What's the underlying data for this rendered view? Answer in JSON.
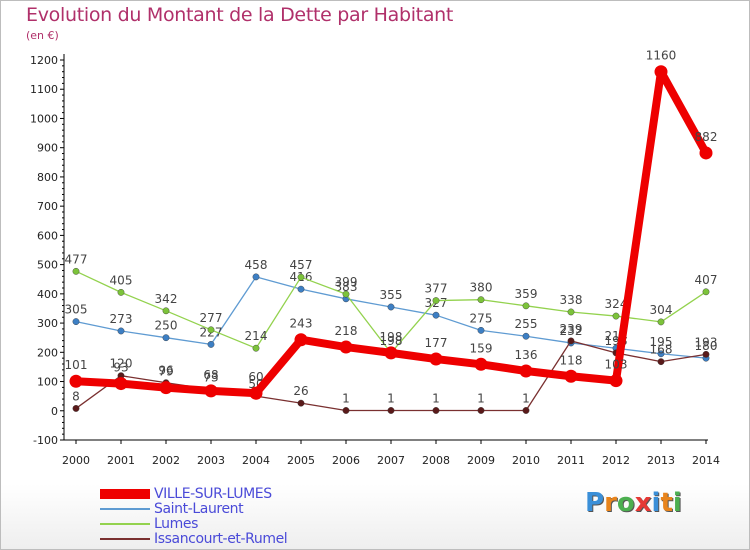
{
  "title": "Evolution du Montant de la Dette par Habitant",
  "subtitle": "(en €)",
  "logo": {
    "letters": [
      "P",
      "r",
      "o",
      "x",
      "i",
      "t",
      "i"
    ],
    "colors": [
      "#3a8fd8",
      "#e8841c",
      "#4caf50",
      "#e53935",
      "#3a8fd8",
      "#e8841c",
      "#4caf50"
    ]
  },
  "chart_data": {
    "type": "line",
    "x": [
      "2000",
      "2001",
      "2002",
      "2003",
      "2004",
      "2005",
      "2006",
      "2007",
      "2008",
      "2009",
      "2010",
      "2011",
      "2012",
      "2013",
      "2014"
    ],
    "ylim": [
      -100,
      1200
    ],
    "yticks": [
      "-100",
      "0",
      "100",
      "200",
      "300",
      "400",
      "500",
      "600",
      "700",
      "800",
      "900",
      "1000",
      "1100",
      "1200"
    ],
    "grid": false,
    "legend_position": "bottom-left",
    "series": [
      {
        "name": "Saint-Laurent",
        "color": "#5f9bd2",
        "marker": "#3d7fc4",
        "width": 1.3,
        "values": [
          305,
          273,
          250,
          227,
          458,
          416,
          383,
          355,
          327,
          275,
          255,
          232,
          214,
          195,
          180
        ],
        "labels": [
          "305",
          "273",
          "250",
          "227",
          "458",
          "416",
          "383",
          "355",
          "327",
          "275",
          "255",
          "232",
          "214",
          "195",
          "180"
        ]
      },
      {
        "name": "Lumes",
        "color": "#93d24e",
        "marker": "#7cc33a",
        "width": 1.3,
        "values": [
          477,
          405,
          342,
          277,
          214,
          457,
          399,
          198,
          377,
          380,
          359,
          338,
          324,
          304,
          407
        ],
        "labels": [
          "477",
          "405",
          "342",
          "277",
          "214",
          "457",
          "399",
          "198",
          "377",
          "380",
          "359",
          "338",
          "324",
          "304",
          "407"
        ]
      },
      {
        "name": "Issancourt-et-Rumel",
        "color": "#7a3030",
        "marker": "#5a1a1a",
        "width": 1.3,
        "values": [
          8,
          120,
          96,
          73,
          50,
          26,
          1,
          1,
          1,
          1,
          1,
          239,
          198,
          168,
          193
        ],
        "labels": [
          "8",
          "120",
          "96",
          "73",
          "50",
          "26",
          "1",
          "1",
          "1",
          "1",
          "1",
          "239",
          "198",
          "168",
          "193"
        ]
      },
      {
        "name": "VILLE-SUR-LUMES",
        "color": "#ee0000",
        "marker": "#ee0000",
        "width": 8,
        "values": [
          101,
          93,
          79,
          68,
          60,
          243,
          218,
          198,
          177,
          159,
          136,
          118,
          103,
          1160,
          882
        ],
        "labels": [
          "101",
          "93",
          "79",
          "68",
          "60",
          "243",
          "218",
          "198",
          "177",
          "159",
          "136",
          "118",
          "103",
          "1160",
          "882"
        ]
      }
    ],
    "legend": [
      {
        "name": "VILLE-SUR-LUMES",
        "color": "#ee0000",
        "thickness": 10,
        "text_color": "#4a4ad8"
      },
      {
        "name": "Saint-Laurent",
        "color": "#5f9bd2",
        "thickness": 2,
        "text_color": "#4a4ad8"
      },
      {
        "name": "Lumes",
        "color": "#93d24e",
        "thickness": 2,
        "text_color": "#4a4ad8"
      },
      {
        "name": "Issancourt-et-Rumel",
        "color": "#7a3030",
        "thickness": 2,
        "text_color": "#4a4ad8"
      }
    ]
  }
}
